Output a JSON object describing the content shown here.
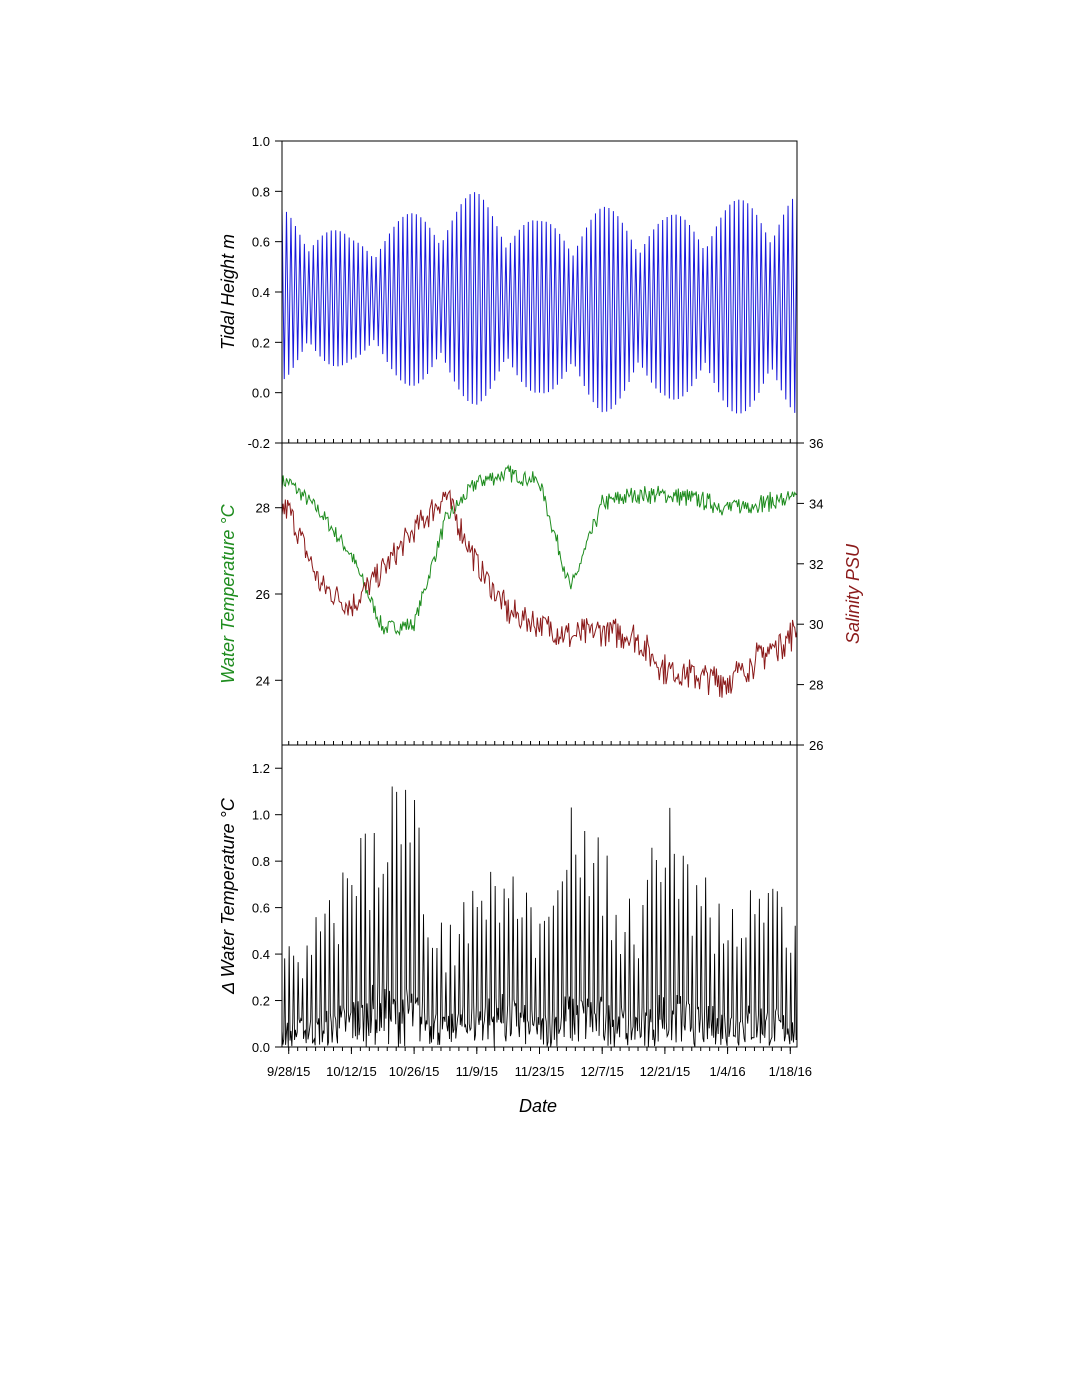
{
  "figure": {
    "xlabel": "Date",
    "x_tick_labels": [
      "9/28/15",
      "10/12/15",
      "10/26/15",
      "11/9/15",
      "11/23/15",
      "12/7/15",
      "12/21/15",
      "1/4/16",
      "1/18/16"
    ],
    "x_ticks_days_since": [
      0,
      14,
      28,
      42,
      56,
      70,
      84,
      98,
      112
    ],
    "x_range_days": [
      -1.5,
      113.5
    ]
  },
  "chart_data": [
    {
      "type": "line",
      "ylabel": "Tidal Height m",
      "ylim": [
        -0.2,
        1.0
      ],
      "yticks": [
        -0.2,
        0.0,
        0.2,
        0.4,
        0.6,
        0.8,
        1.0
      ],
      "ytick_labels": [
        "-0.2",
        "0.0",
        "0.2",
        "0.4",
        "0.6",
        "0.8",
        "1.0"
      ],
      "series": [
        {
          "name": "Tidal Height",
          "color": "#1a1adc",
          "x_dates": [
            "9/28/15",
            "10/12/15",
            "10/26/15",
            "11/9/15",
            "11/23/15",
            "12/7/15",
            "12/21/15",
            "1/4/16",
            "1/18/16"
          ],
          "envelope_max": [
            0.74,
            0.62,
            0.72,
            0.8,
            0.68,
            0.74,
            0.7,
            0.76,
            0.8
          ],
          "envelope_min": [
            0.04,
            0.12,
            0.02,
            -0.05,
            0.0,
            -0.08,
            -0.02,
            -0.08,
            -0.1
          ]
        }
      ]
    },
    {
      "type": "line",
      "ylabel": "Water Temperature °C",
      "ylabel_right": "Salinity PSU",
      "ylim": [
        22.5,
        29.5
      ],
      "yticks": [
        24,
        26,
        28
      ],
      "ytick_labels": [
        "24",
        "26",
        "28"
      ],
      "ylim_right": [
        26,
        36
      ],
      "yticks_right": [
        26,
        28,
        30,
        32,
        34,
        36
      ],
      "ytick_labels_right": [
        "26",
        "28",
        "30",
        "32",
        "34",
        "36"
      ],
      "series": [
        {
          "name": "Water Temperature",
          "color": "#1e8c1e",
          "axis": "left",
          "x_dates": [
            "9/28/15",
            "10/5/15",
            "10/12/15",
            "10/19/15",
            "10/26/15",
            "11/2/15",
            "11/9/15",
            "11/16/15",
            "11/23/15",
            "11/30/15",
            "12/7/15",
            "12/14/15",
            "12/21/15",
            "12/28/15",
            "1/4/16",
            "1/11/16",
            "1/18/16",
            "1/20/16"
          ],
          "values": [
            28.6,
            27.9,
            26.9,
            25.2,
            25.3,
            27.7,
            28.6,
            28.8,
            28.6,
            26.1,
            28.1,
            28.3,
            28.3,
            28.2,
            28.0,
            28.1,
            28.2,
            28.2
          ]
        },
        {
          "name": "Salinity",
          "color": "#8b1a1a",
          "axis": "right",
          "x_dates": [
            "9/28/15",
            "10/5/15",
            "10/12/15",
            "10/19/15",
            "10/26/15",
            "11/2/15",
            "11/9/15",
            "11/16/15",
            "11/23/15",
            "11/30/15",
            "12/7/15",
            "12/14/15",
            "12/21/15",
            "12/28/15",
            "1/4/16",
            "1/11/16",
            "1/18/16",
            "1/20/16"
          ],
          "values": [
            33.8,
            31.3,
            30.6,
            31.8,
            33.1,
            34.3,
            32.0,
            30.4,
            30.0,
            29.6,
            29.8,
            29.6,
            28.5,
            28.3,
            28.1,
            28.9,
            29.6,
            30.0
          ]
        }
      ]
    },
    {
      "type": "line",
      "ylabel": "Δ Water Temperature °C",
      "ylim": [
        0.0,
        1.3
      ],
      "yticks": [
        0.0,
        0.2,
        0.4,
        0.6,
        0.8,
        1.0,
        1.2
      ],
      "ytick_labels": [
        "0.0",
        "0.2",
        "0.4",
        "0.6",
        "0.8",
        "1.0",
        "1.2"
      ],
      "series": [
        {
          "name": "Δ Water Temperature",
          "color": "#000000",
          "x_dates": [
            "9/28/15",
            "10/5/15",
            "10/12/15",
            "10/19/15",
            "10/26/15",
            "11/2/15",
            "11/9/15",
            "11/16/15",
            "11/23/15",
            "11/30/15",
            "12/7/15",
            "12/14/15",
            "12/21/15",
            "12/28/15",
            "1/4/16",
            "1/11/16",
            "1/18/16",
            "1/20/16"
          ],
          "daily_peak": [
            0.45,
            0.6,
            0.85,
            1.2,
            1.1,
            0.5,
            0.9,
            0.95,
            0.55,
            1.05,
            0.9,
            0.6,
            1.1,
            0.75,
            0.7,
            0.8,
            0.6,
            0.52
          ]
        }
      ]
    }
  ]
}
